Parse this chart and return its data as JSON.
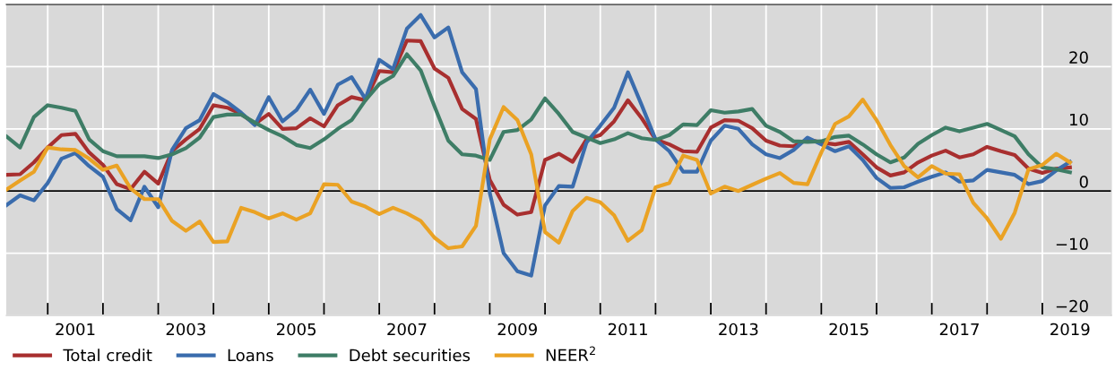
{
  "chart_data": {
    "type": "line",
    "x": [
      2000.25,
      2000.5,
      2000.75,
      2001,
      2001.25,
      2001.5,
      2001.75,
      2002,
      2002.25,
      2002.5,
      2002.75,
      2003,
      2003.25,
      2003.5,
      2003.75,
      2004,
      2004.25,
      2004.5,
      2004.75,
      2005,
      2005.25,
      2005.5,
      2005.75,
      2006,
      2006.25,
      2006.5,
      2006.75,
      2007,
      2007.25,
      2007.5,
      2007.75,
      2008,
      2008.25,
      2008.5,
      2008.75,
      2009,
      2009.25,
      2009.5,
      2009.75,
      2010,
      2010.25,
      2010.5,
      2010.75,
      2011,
      2011.25,
      2011.5,
      2011.75,
      2012,
      2012.25,
      2012.5,
      2012.75,
      2013,
      2013.25,
      2013.5,
      2013.75,
      2014,
      2014.25,
      2014.5,
      2014.75,
      2015,
      2015.25,
      2015.5,
      2015.75,
      2016,
      2016.25,
      2016.5,
      2016.75,
      2017,
      2017.25,
      2017.5,
      2017.75,
      2018,
      2018.25,
      2018.5,
      2018.75,
      2019,
      2019.25,
      2019.5
    ],
    "series": [
      {
        "name": "Total credit",
        "color": "#a82f2f",
        "values": [
          2.6,
          2.7,
          4.6,
          7.0,
          9.0,
          9.2,
          6.2,
          4.2,
          1.1,
          0.3,
          3.1,
          1.2,
          6.4,
          8.3,
          10.0,
          13.8,
          13.4,
          12.4,
          10.8,
          12.4,
          10.0,
          10.1,
          11.7,
          10.4,
          13.8,
          15.1,
          14.6,
          19.3,
          19.1,
          24.2,
          24.1,
          19.7,
          18.2,
          13.2,
          11.6,
          1.8,
          -2.2,
          -3.8,
          -3.4,
          5.0,
          6.0,
          4.7,
          8.3,
          9.0,
          11.2,
          14.6,
          11.7,
          8.3,
          7.5,
          6.4,
          6.3,
          10.2,
          11.4,
          11.3,
          10.1,
          8.1,
          7.3,
          7.2,
          8.3,
          7.8,
          7.5,
          7.9,
          5.9,
          3.8,
          2.5,
          3.0,
          4.6,
          5.7,
          6.5,
          5.4,
          5.9,
          7.1,
          6.4,
          5.8,
          3.6,
          2.9,
          3.6,
          3.8
        ]
      },
      {
        "name": "Loans",
        "color": "#3a6cad",
        "values": [
          -2.3,
          -0.7,
          -1.5,
          1.3,
          5.2,
          6.1,
          4.0,
          2.3,
          -2.9,
          -4.7,
          0.7,
          -2.6,
          6.6,
          10.1,
          11.4,
          15.6,
          14.3,
          12.6,
          10.6,
          15.1,
          11.2,
          13.0,
          16.3,
          12.4,
          17.1,
          18.3,
          14.8,
          21.1,
          19.6,
          26.1,
          28.3,
          24.7,
          26.3,
          19.1,
          16.4,
          -0.3,
          -10.0,
          -12.9,
          -13.6,
          -2.3,
          0.8,
          0.7,
          7.8,
          10.5,
          13.4,
          19.1,
          13.8,
          8.3,
          6.4,
          3.1,
          3.1,
          8.1,
          10.5,
          10.0,
          7.5,
          5.9,
          5.3,
          6.6,
          8.6,
          7.5,
          6.4,
          7.2,
          5.0,
          2.1,
          0.5,
          0.6,
          1.5,
          2.3,
          3.0,
          1.5,
          1.7,
          3.4,
          3.0,
          2.6,
          1.1,
          1.6,
          3.3,
          4.7
        ]
      },
      {
        "name": "Debt securities",
        "color": "#3e7d66",
        "values": [
          8.8,
          7.0,
          11.9,
          13.8,
          13.4,
          12.9,
          8.3,
          6.4,
          5.6,
          5.6,
          5.6,
          5.3,
          5.9,
          6.9,
          8.6,
          11.9,
          12.3,
          12.3,
          11.0,
          9.8,
          8.8,
          7.4,
          6.9,
          8.3,
          10.0,
          11.4,
          14.6,
          17.2,
          18.5,
          22.0,
          19.4,
          13.6,
          8.1,
          5.9,
          5.7,
          5.0,
          9.5,
          9.8,
          11.5,
          14.9,
          12.4,
          9.5,
          8.6,
          7.7,
          8.3,
          9.3,
          8.5,
          8.2,
          9.0,
          10.7,
          10.6,
          13.0,
          12.6,
          12.8,
          13.2,
          10.5,
          9.5,
          8.0,
          7.9,
          8.0,
          8.7,
          8.9,
          7.5,
          5.9,
          4.6,
          5.4,
          7.6,
          9.0,
          10.2,
          9.6,
          10.2,
          10.8,
          9.8,
          8.8,
          5.9,
          3.8,
          3.5,
          3.0
        ]
      },
      {
        "name": "NEER$^{2}$",
        "color": "#eaa224",
        "values": [
          0.2,
          1.7,
          3.1,
          7.0,
          6.7,
          6.6,
          5.2,
          3.4,
          4.1,
          0.4,
          -1.3,
          -1.3,
          -4.8,
          -6.4,
          -4.9,
          -8.2,
          -8.1,
          -2.7,
          -3.4,
          -4.4,
          -3.6,
          -4.6,
          -3.6,
          1.1,
          1.0,
          -1.7,
          -2.5,
          -3.7,
          -2.7,
          -3.6,
          -4.8,
          -7.5,
          -9.2,
          -8.9,
          -5.6,
          8.3,
          13.5,
          11.4,
          5.9,
          -6.6,
          -8.3,
          -3.2,
          -1.1,
          -1.8,
          -3.9,
          -8.0,
          -6.3,
          0.6,
          1.3,
          5.7,
          5.0,
          -0.4,
          0.7,
          0.0,
          1.0,
          2.0,
          2.9,
          1.3,
          1.1,
          6.2,
          10.8,
          12.0,
          14.7,
          11.4,
          7.4,
          4.0,
          2.2,
          4.0,
          2.8,
          2.7,
          -1.9,
          -4.4,
          -7.7,
          -3.5,
          3.5,
          4.2,
          6.0,
          4.6
        ]
      }
    ],
    "xlim": [
      2000.25,
      2020.25
    ],
    "xticks": [
      {
        "value": 2001,
        "label": null
      },
      {
        "value": 2002,
        "label": null
      },
      {
        "value": 2003,
        "label": null
      },
      {
        "value": 2004,
        "label": null
      },
      {
        "value": 2005,
        "label": null
      },
      {
        "value": 2006,
        "label": null
      },
      {
        "value": 2007,
        "label": null
      },
      {
        "value": 2008,
        "label": null
      },
      {
        "value": 2009,
        "label": null
      },
      {
        "value": 2010,
        "label": null
      },
      {
        "value": 2011,
        "label": null
      },
      {
        "value": 2012,
        "label": null
      },
      {
        "value": 2013,
        "label": null
      },
      {
        "value": 2014,
        "label": null
      },
      {
        "value": 2015,
        "label": null
      },
      {
        "value": 2016,
        "label": null
      },
      {
        "value": 2017,
        "label": null
      },
      {
        "value": 2018,
        "label": null
      },
      {
        "value": 2019,
        "label": null
      },
      {
        "value": 2001.5,
        "label": "2001"
      },
      {
        "value": 2003.5,
        "label": "2003"
      },
      {
        "value": 2005.5,
        "label": "2005"
      },
      {
        "value": 2007.5,
        "label": "2007"
      },
      {
        "value": 2009.5,
        "label": "2009"
      },
      {
        "value": 2011.5,
        "label": "2011"
      },
      {
        "value": 2013.5,
        "label": "2013"
      },
      {
        "value": 2015.5,
        "label": "2015"
      },
      {
        "value": 2017.5,
        "label": "2017"
      },
      {
        "value": 2019.5,
        "label": "2019"
      }
    ],
    "ylim": [
      -20,
      30
    ],
    "yticks": [
      {
        "value": -20,
        "label": "−20"
      },
      {
        "value": -10,
        "label": "−10"
      },
      0,
      10,
      20
    ],
    "ref_lines": [
      {
        "axis": "y",
        "value": 0,
        "color": "#000000"
      }
    ],
    "grid": true,
    "legend": "bottom",
    "marker": "none",
    "line_style": "solid"
  }
}
